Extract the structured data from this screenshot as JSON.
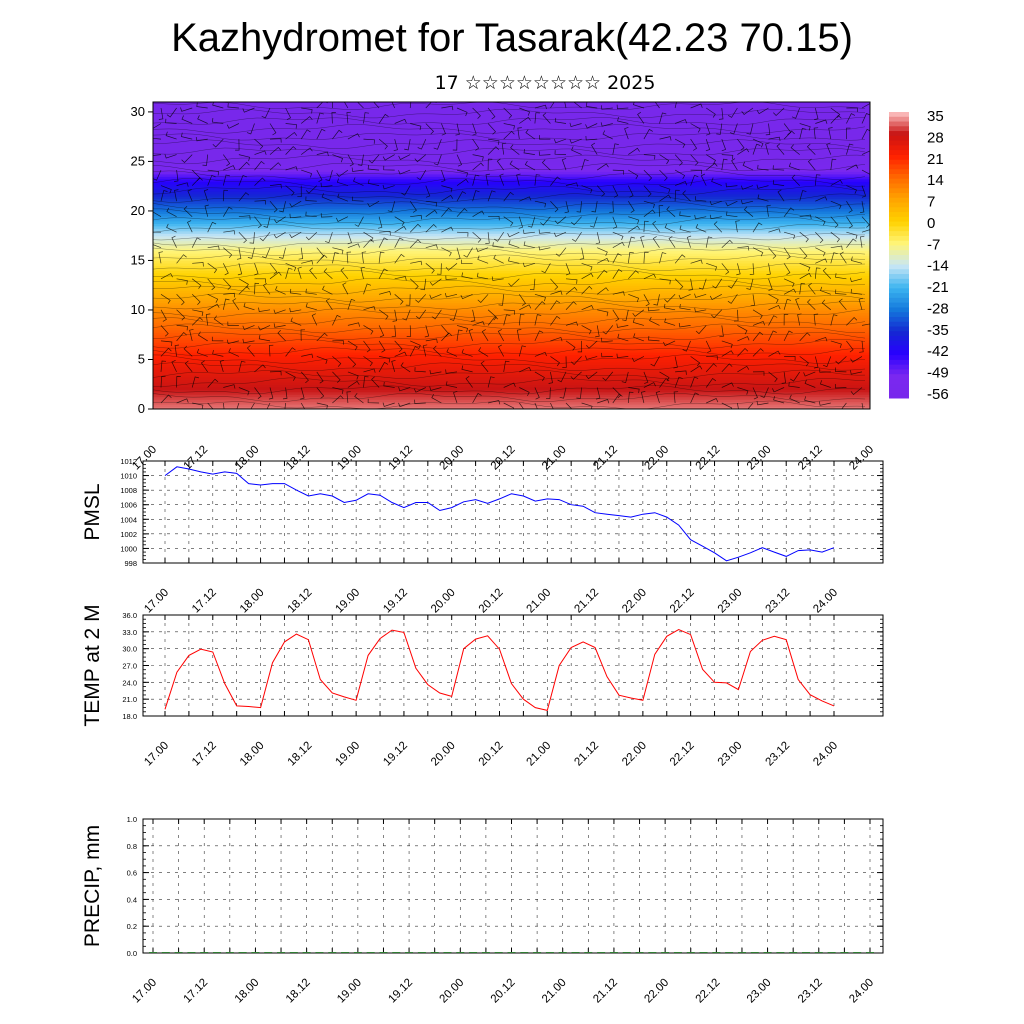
{
  "header": {
    "title": "Kazhydromet for Tasarak(42.23 70.15)",
    "subtitle": "17 ☆☆☆☆☆☆☆☆ 2025"
  },
  "chart_data": [
    {
      "type": "heatmap",
      "panel": "vertical-cross-section",
      "x_tick_labels": [
        "17.00",
        "17.12",
        "18.00",
        "18.12",
        "19.00",
        "19.12",
        "20.00",
        "20.12",
        "21.00",
        "21.12",
        "22.00",
        "22.12",
        "23.00",
        "23.12",
        "24.00"
      ],
      "y_tick_labels": [
        "0",
        "5",
        "10",
        "15",
        "20",
        "25",
        "30"
      ],
      "ylim": [
        0,
        31
      ],
      "colorbar_labels": [
        "35",
        "28",
        "21",
        "14",
        "7",
        "0",
        "-7",
        "-14",
        "-21",
        "-28",
        "-35",
        "-42",
        "-49",
        "-56"
      ],
      "colorscale": [
        "#ffc8c8",
        "#c81414",
        "#ff2000",
        "#ff6a00",
        "#ffa500",
        "#ffd200",
        "#fff57a",
        "#c8e6f5",
        "#3cb4f0",
        "#1478dc",
        "#1428d2",
        "#2800ff",
        "#7a28f0",
        "#7828eb"
      ],
      "temperature_profile": [
        {
          "level": 0,
          "value": 32
        },
        {
          "level": 5,
          "value": 22
        },
        {
          "level": 10,
          "value": 10
        },
        {
          "level": 13.5,
          "value": 0
        },
        {
          "level": 16,
          "value": -7
        },
        {
          "level": 17.5,
          "value": -14
        },
        {
          "level": 20,
          "value": -28
        },
        {
          "level": 23,
          "value": -42
        },
        {
          "level": 25,
          "value": -56
        },
        {
          "level": 31,
          "value": -58
        }
      ],
      "wind_barbs": "shown",
      "contours": "shown"
    },
    {
      "type": "line",
      "panel": "pmsl",
      "ylabel": "PMSL",
      "ylim": [
        998,
        1012
      ],
      "y_tick_labels": [
        "998",
        "1000",
        "1002",
        "1004",
        "1006",
        "1008",
        "1010",
        "1012"
      ],
      "x_tick_labels": [
        "17.00",
        "17.12",
        "18.00",
        "18.12",
        "19.00",
        "19.12",
        "20.00",
        "20.12",
        "21.00",
        "21.12",
        "22.00",
        "22.12",
        "23.00",
        "23.12",
        "24.00"
      ],
      "color": "#0000ff",
      "series": [
        {
          "values": [
            1010.0,
            1011.2,
            1010.9,
            1010.5,
            1010.2,
            1010.5,
            1010.3,
            1008.9,
            1008.7,
            1008.9,
            1008.9,
            1008.0,
            1007.2,
            1007.5,
            1007.2,
            1006.3,
            1006.6,
            1007.5,
            1007.3,
            1006.3,
            1005.6,
            1006.3,
            1006.3,
            1005.2,
            1005.6,
            1006.4,
            1006.7,
            1006.2,
            1006.8,
            1007.5,
            1007.2,
            1006.5,
            1006.8,
            1006.7,
            1006.0,
            1005.8,
            1004.9,
            1004.7,
            1004.5,
            1004.3,
            1004.7,
            1004.9,
            1004.3,
            1003.2,
            1001.2,
            1000.3,
            999.4,
            998.3,
            998.8,
            999.4,
            1000.1,
            999.5,
            998.9,
            999.7,
            999.8,
            999.5,
            1000.1
          ]
        }
      ]
    },
    {
      "type": "line",
      "panel": "temp2m",
      "ylabel": "TEMP at 2 M",
      "ylim": [
        18,
        36
      ],
      "y_tick_labels": [
        "18.0",
        "21.0",
        "24.0",
        "27.0",
        "30.0",
        "33.0",
        "36.0"
      ],
      "x_tick_labels": [
        "17.00",
        "17.12",
        "18.00",
        "18.12",
        "19.00",
        "19.12",
        "20.00",
        "20.12",
        "21.00",
        "21.12",
        "22.00",
        "22.12",
        "23.00",
        "23.12",
        "24.00"
      ],
      "color": "#ff0000",
      "series": [
        {
          "values": [
            19.2,
            25.8,
            28.8,
            29.9,
            29.4,
            23.8,
            19.8,
            19.7,
            19.5,
            27.5,
            31.2,
            32.6,
            31.6,
            24.5,
            22.1,
            21.4,
            20.8,
            28.8,
            31.8,
            33.3,
            32.9,
            26.5,
            23.6,
            22.1,
            21.5,
            30.0,
            31.7,
            32.3,
            29.9,
            23.8,
            21.0,
            19.5,
            19.0,
            27.0,
            30.2,
            31.2,
            30.2,
            25.0,
            21.7,
            21.2,
            20.8,
            29.0,
            32.2,
            33.4,
            32.5,
            26.3,
            24.0,
            23.9,
            22.7,
            29.5,
            31.5,
            32.2,
            31.6,
            24.5,
            21.8,
            20.7,
            19.8
          ]
        }
      ]
    },
    {
      "type": "bar",
      "panel": "precip",
      "ylabel": "PRECIP, mm",
      "ylim": [
        0,
        1
      ],
      "y_tick_labels": [
        "0.0",
        "0.2",
        "0.4",
        "0.6",
        "0.8",
        "1.0"
      ],
      "x_tick_labels": [
        "17.00",
        "17.12",
        "18.00",
        "18.12",
        "19.00",
        "19.12",
        "20.00",
        "20.12",
        "21.00",
        "21.12",
        "22.00",
        "22.12",
        "23.00",
        "23.12",
        "24.00"
      ],
      "series": [
        {
          "values": [
            0,
            0,
            0,
            0,
            0,
            0,
            0,
            0,
            0,
            0,
            0,
            0,
            0,
            0,
            0,
            0,
            0,
            0,
            0,
            0,
            0,
            0,
            0,
            0,
            0,
            0,
            0,
            0,
            0,
            0,
            0,
            0,
            0,
            0,
            0,
            0,
            0,
            0,
            0,
            0,
            0,
            0,
            0,
            0,
            0,
            0,
            0,
            0,
            0,
            0,
            0,
            0,
            0,
            0,
            0,
            0,
            0
          ]
        }
      ]
    }
  ]
}
